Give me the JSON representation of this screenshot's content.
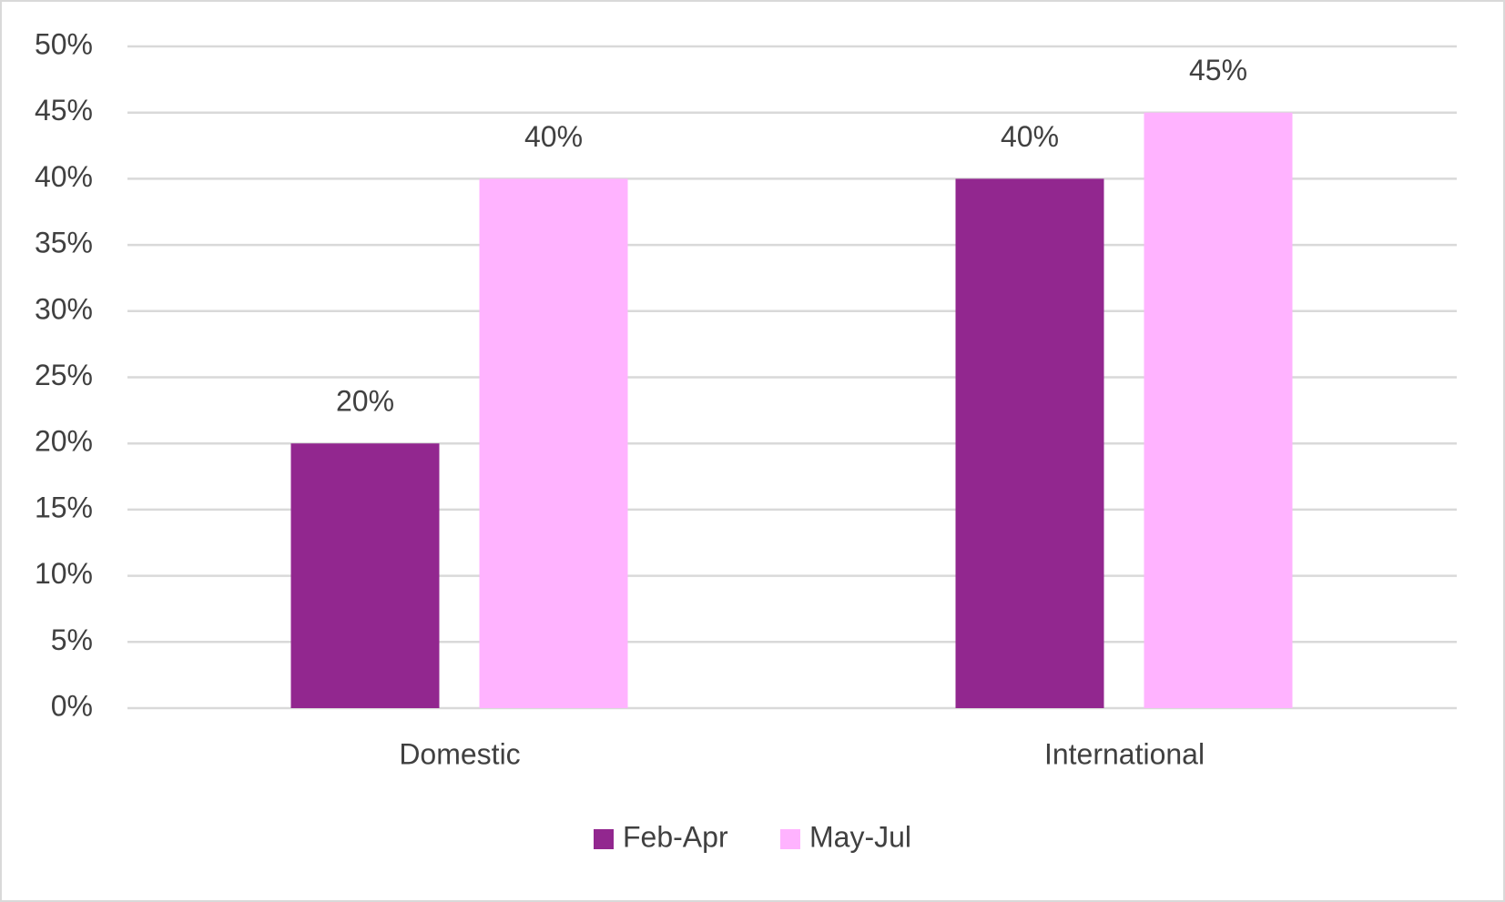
{
  "chart_data": {
    "type": "bar",
    "categories": [
      "Domestic",
      "International"
    ],
    "series": [
      {
        "name": "Feb-Apr",
        "color": "#92278f",
        "values": [
          20,
          40
        ],
        "value_labels": [
          "20%",
          "40%"
        ]
      },
      {
        "name": "May-Jul",
        "color": "#ffb3ff",
        "values": [
          40,
          45
        ],
        "value_labels": [
          "40%",
          "45%"
        ]
      }
    ],
    "ylim": [
      0,
      50
    ],
    "yticks": [
      {
        "value": 0,
        "label": "0%"
      },
      {
        "value": 5,
        "label": "5%"
      },
      {
        "value": 10,
        "label": "10%"
      },
      {
        "value": 15,
        "label": "15%"
      },
      {
        "value": 20,
        "label": "20%"
      },
      {
        "value": 25,
        "label": "25%"
      },
      {
        "value": 30,
        "label": "30%"
      },
      {
        "value": 35,
        "label": "35%"
      },
      {
        "value": 40,
        "label": "40%"
      },
      {
        "value": 45,
        "label": "45%"
      },
      {
        "value": 50,
        "label": "50%"
      }
    ],
    "grid": true,
    "legend": "bottom"
  }
}
